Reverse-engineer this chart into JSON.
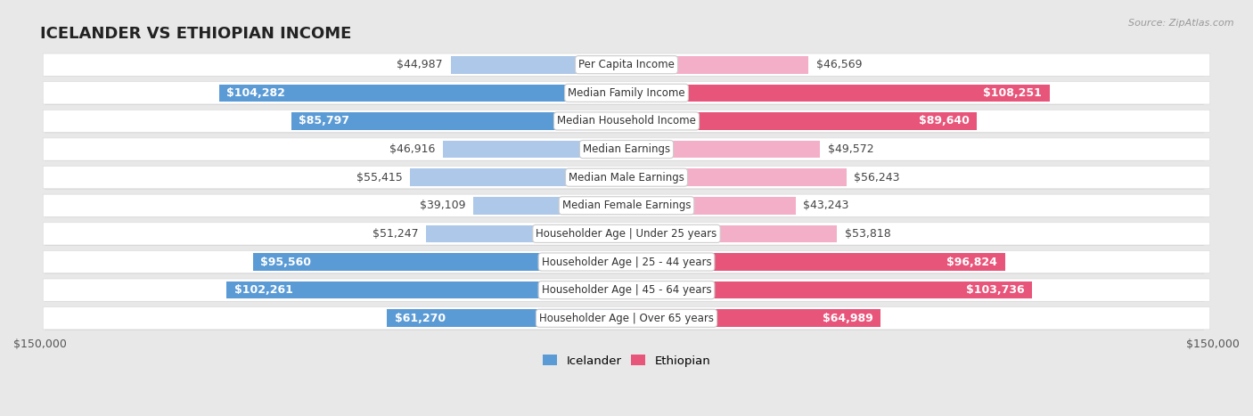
{
  "title": "ICELANDER VS ETHIOPIAN INCOME",
  "source": "Source: ZipAtlas.com",
  "categories": [
    "Per Capita Income",
    "Median Family Income",
    "Median Household Income",
    "Median Earnings",
    "Median Male Earnings",
    "Median Female Earnings",
    "Householder Age | Under 25 years",
    "Householder Age | 25 - 44 years",
    "Householder Age | 45 - 64 years",
    "Householder Age | Over 65 years"
  ],
  "icelander_values": [
    44987,
    104282,
    85797,
    46916,
    55415,
    39109,
    51247,
    95560,
    102261,
    61270
  ],
  "ethiopian_values": [
    46569,
    108251,
    89640,
    49572,
    56243,
    43243,
    53818,
    96824,
    103736,
    64989
  ],
  "icelander_labels": [
    "$44,987",
    "$104,282",
    "$85,797",
    "$46,916",
    "$55,415",
    "$39,109",
    "$51,247",
    "$95,560",
    "$102,261",
    "$61,270"
  ],
  "ethiopian_labels": [
    "$46,569",
    "$108,251",
    "$89,640",
    "$49,572",
    "$56,243",
    "$43,243",
    "$53,818",
    "$96,824",
    "$103,736",
    "$64,989"
  ],
  "icelander_color_light": "#adc8e8",
  "icelander_color_dark": "#5b9bd5",
  "ethiopian_color_light": "#f4afc8",
  "ethiopian_color_dark": "#e8557a",
  "inside_threshold": 0.38,
  "max_value": 150000,
  "bar_height": 0.62,
  "bg_color": "#e8e8e8",
  "row_bg": "#ffffff",
  "label_fontsize": 9.0,
  "title_fontsize": 13,
  "legend_fontsize": 9.5
}
